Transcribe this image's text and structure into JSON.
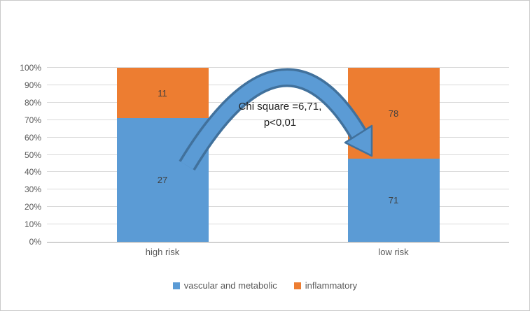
{
  "chart_data": {
    "type": "bar",
    "variant": "100-percent-stacked-column",
    "title": "",
    "xlabel": "",
    "ylabel": "",
    "categories": [
      "high risk",
      "low risk"
    ],
    "series": [
      {
        "name": "vascular and metabolic",
        "color": "#5B9BD5",
        "values": [
          27,
          71
        ]
      },
      {
        "name": "inflammatory",
        "color": "#ED7D31",
        "values": [
          11,
          78
        ]
      }
    ],
    "y_ticks": [
      "0%",
      "10%",
      "20%",
      "30%",
      "40%",
      "50%",
      "60%",
      "70%",
      "80%",
      "90%",
      "100%"
    ],
    "ylim": [
      0,
      100
    ],
    "grid": true,
    "legend_position": "bottom",
    "annotation": {
      "line1": "Chi square =6,71,",
      "line2": "p<0,01",
      "arrow_fill": "#5B9BD5",
      "arrow_outline": "#41719C"
    }
  }
}
